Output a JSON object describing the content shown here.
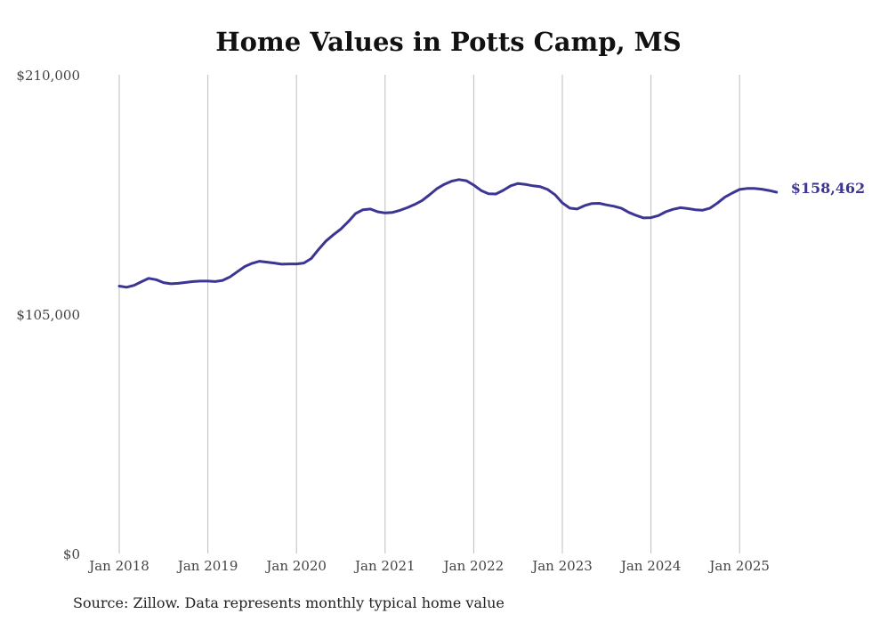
{
  "chart_data": {
    "type": "line",
    "title": "Home Values in Potts Camp, MS",
    "source": "Source: Zillow. Data represents monthly typical home value",
    "xlabel": "",
    "ylabel": "",
    "ylim": [
      0,
      210000
    ],
    "y_ticks": [
      0,
      105000,
      210000
    ],
    "y_tick_labels": [
      "$0",
      "$105,000",
      "$210,000"
    ],
    "x_ticks": [
      "2018-01",
      "2019-01",
      "2020-01",
      "2021-01",
      "2022-01",
      "2023-01",
      "2024-01",
      "2025-01"
    ],
    "x_tick_labels": [
      "Jan 2018",
      "Jan 2019",
      "Jan 2020",
      "Jan 2021",
      "Jan 2022",
      "Jan 2023",
      "Jan 2024",
      "Jan 2025"
    ],
    "grid": "vertical",
    "line_color": "#3b3594",
    "end_label": "$158,462",
    "series": [
      {
        "x": [
          "2018-01",
          "2018-02",
          "2018-03",
          "2018-04",
          "2018-05",
          "2018-06",
          "2018-07",
          "2018-08",
          "2018-09",
          "2018-10",
          "2018-11",
          "2018-12",
          "2019-01",
          "2019-02",
          "2019-03",
          "2019-04",
          "2019-05",
          "2019-06",
          "2019-07",
          "2019-08",
          "2019-09",
          "2019-10",
          "2019-11",
          "2019-12",
          "2020-01",
          "2020-02",
          "2020-03",
          "2020-04",
          "2020-05",
          "2020-06",
          "2020-07",
          "2020-08",
          "2020-09",
          "2020-10",
          "2020-11",
          "2020-12",
          "2021-01",
          "2021-02",
          "2021-03",
          "2021-04",
          "2021-05",
          "2021-06",
          "2021-07",
          "2021-08",
          "2021-09",
          "2021-10",
          "2021-11",
          "2021-12",
          "2022-01",
          "2022-02",
          "2022-03",
          "2022-04",
          "2022-05",
          "2022-06",
          "2022-07",
          "2022-08",
          "2022-09",
          "2022-10",
          "2022-11",
          "2022-12",
          "2023-01",
          "2023-02",
          "2023-03",
          "2023-04",
          "2023-05",
          "2023-06",
          "2023-07",
          "2023-08",
          "2023-09",
          "2023-10",
          "2023-11",
          "2023-12",
          "2024-01",
          "2024-02",
          "2024-03",
          "2024-04",
          "2024-05",
          "2024-06",
          "2024-07",
          "2024-08",
          "2024-09",
          "2024-10",
          "2024-11",
          "2024-12",
          "2025-01",
          "2025-02",
          "2025-03",
          "2025-04",
          "2025-05",
          "2025-06"
        ],
        "values": [
          117300,
          116800,
          117600,
          119200,
          120700,
          120100,
          118800,
          118300,
          118500,
          118900,
          119300,
          119500,
          119500,
          119300,
          119800,
          121300,
          123600,
          125900,
          127300,
          128200,
          127800,
          127400,
          126900,
          127000,
          127000,
          127400,
          129400,
          133400,
          137100,
          139800,
          142300,
          145500,
          149100,
          150800,
          151100,
          149900,
          149400,
          149600,
          150500,
          151700,
          153100,
          154800,
          157300,
          160000,
          161900,
          163300,
          164000,
          163500,
          161600,
          159200,
          157800,
          157700,
          159300,
          161300,
          162300,
          161900,
          161300,
          160900,
          159700,
          157400,
          153800,
          151500,
          151100,
          152600,
          153500,
          153600,
          152900,
          152300,
          151400,
          149600,
          148300,
          147200,
          147300,
          148200,
          149900,
          151000,
          151700,
          151300,
          150800,
          150600,
          151500,
          153700,
          156300,
          158100,
          159700,
          160100,
          160100,
          159800,
          159200,
          158462
        ]
      }
    ]
  }
}
